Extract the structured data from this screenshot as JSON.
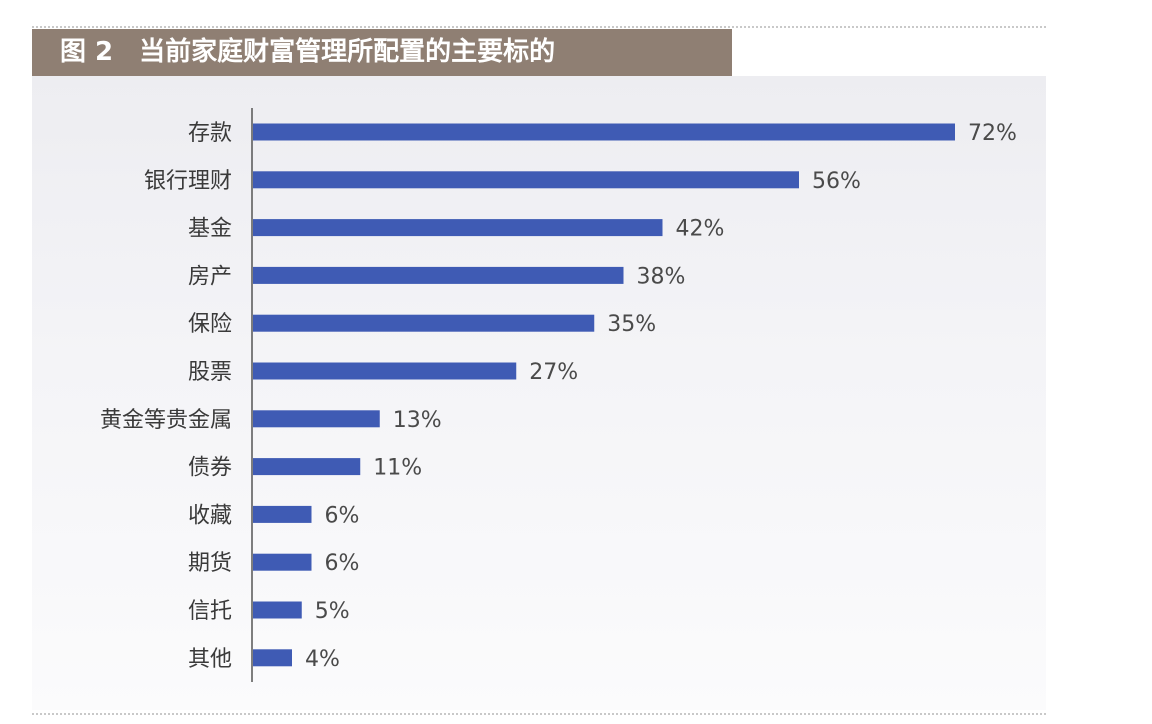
{
  "title": "图 2　当前家庭财富管理所配置的主要标的",
  "colors": {
    "bar": "#3f5bb4",
    "title_band": "#8f7f73",
    "axis": "#555555"
  },
  "chart_data": {
    "type": "bar",
    "orientation": "horizontal",
    "title": "图 2　当前家庭财富管理所配置的主要标的",
    "categories": [
      "存款",
      "银行理财",
      "基金",
      "房产",
      "保险",
      "股票",
      "黄金等贵金属",
      "债券",
      "收藏",
      "期货",
      "信托",
      "其他"
    ],
    "values": [
      72,
      56,
      42,
      38,
      35,
      27,
      13,
      11,
      6,
      6,
      5,
      4
    ],
    "value_labels": [
      "72%",
      "56%",
      "42%",
      "38%",
      "35%",
      "27%",
      "13%",
      "11%",
      "6%",
      "6%",
      "5%",
      "4%"
    ],
    "unit": "%",
    "xlim": [
      0,
      72
    ],
    "grid": false,
    "legend": "none"
  }
}
